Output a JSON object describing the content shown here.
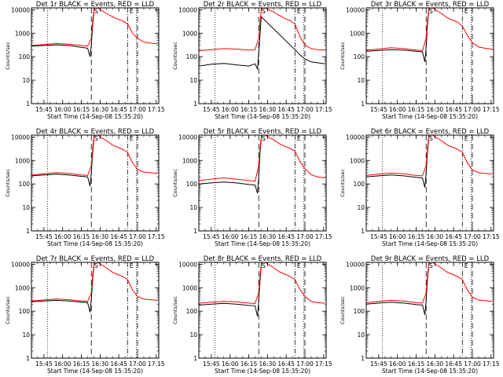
{
  "figure": {
    "xlabel": "Start Time (14-Sep-08 15:35:20)",
    "ylabel": "Counts/sec",
    "x_ticks": [
      "15:45",
      "16:00",
      "16:15",
      "16:30",
      "16:45",
      "17:00",
      "17:15"
    ],
    "y_ticks": [
      "1",
      "10",
      "100",
      "1000",
      "10000"
    ],
    "markers": {
      "start": "S",
      "end": "E"
    },
    "colors": {
      "events": "#000000",
      "lld": "#ff0000",
      "axes": "#000000"
    }
  },
  "chart_data": [
    {
      "type": "line",
      "title": "Det 1r BLACK = Events, RED = LLD",
      "xlim": [
        "15:35",
        "17:17"
      ],
      "ylim": [
        1,
        12000
      ],
      "yscale": "log",
      "vlines_dotted": [
        "15:48",
        "16:59"
      ],
      "vlines_dashed": [
        "16:23",
        "17:00"
      ],
      "vlines_dashdot": [
        "16:52"
      ],
      "series": [
        {
          "name": "Events",
          "x": [
            "15:35",
            "15:45",
            "15:55",
            "16:05",
            "16:15",
            "16:20",
            "16:22",
            "16:23",
            "16:24",
            "16:25"
          ],
          "y": [
            280,
            300,
            320,
            300,
            250,
            230,
            100,
            300,
            2000,
            8000
          ]
        },
        {
          "name": "LLD",
          "x": [
            "15:35",
            "15:45",
            "15:55",
            "16:05",
            "16:15",
            "16:20",
            "16:23",
            "16:24",
            "16:25",
            "16:26",
            "16:28",
            "16:35",
            "16:40",
            "16:45",
            "16:48",
            "16:52",
            "16:56",
            "17:00",
            "17:05",
            "17:10",
            "17:16"
          ],
          "y": [
            300,
            330,
            360,
            340,
            300,
            280,
            600,
            3000,
            10000,
            12000,
            12000,
            7000,
            5000,
            3800,
            3400,
            2500,
            1000,
            600,
            420,
            380,
            350
          ]
        }
      ]
    },
    {
      "type": "line",
      "title": "Det 2r BLACK = Events, RED = LLD",
      "xlim": [
        "15:35",
        "17:17"
      ],
      "ylim": [
        1,
        12000
      ],
      "yscale": "log",
      "vlines_dotted": [
        "15:48",
        "16:59"
      ],
      "vlines_dashed": [
        "16:23",
        "17:00"
      ],
      "vlines_dashdot": [
        "16:52"
      ],
      "series": [
        {
          "name": "Events",
          "x": [
            "15:35",
            "15:45",
            "15:55",
            "16:05",
            "16:15",
            "16:20",
            "16:22",
            "16:23",
            "16:24",
            "16:25",
            "16:52",
            "16:56",
            "17:00",
            "17:05",
            "17:10",
            "17:16"
          ],
          "y": [
            40,
            48,
            52,
            45,
            40,
            50,
            30,
            150,
            800,
            5000,
            200,
            120,
            80,
            60,
            55,
            50
          ]
        },
        {
          "name": "LLD",
          "x": [
            "15:35",
            "15:45",
            "15:55",
            "16:05",
            "16:15",
            "16:20",
            "16:23",
            "16:24",
            "16:25",
            "16:26",
            "16:28",
            "16:35",
            "16:40",
            "16:45",
            "16:48",
            "16:52",
            "16:56",
            "17:00",
            "17:05",
            "17:10",
            "17:16"
          ],
          "y": [
            180,
            200,
            220,
            210,
            190,
            200,
            600,
            3000,
            10000,
            12000,
            12000,
            8000,
            5500,
            4000,
            3500,
            2500,
            700,
            320,
            220,
            200,
            190
          ]
        }
      ]
    },
    {
      "type": "line",
      "title": "Det 3r BLACK = Events, RED = LLD",
      "xlim": [
        "15:35",
        "17:17"
      ],
      "ylim": [
        1,
        12000
      ],
      "yscale": "log",
      "vlines_dotted": [
        "15:48",
        "16:59"
      ],
      "vlines_dashed": [
        "16:23",
        "17:00"
      ],
      "vlines_dashdot": [
        "16:52"
      ],
      "series": [
        {
          "name": "Events",
          "x": [
            "15:35",
            "15:45",
            "15:55",
            "16:05",
            "16:15",
            "16:20",
            "16:22",
            "16:23",
            "16:24",
            "16:25"
          ],
          "y": [
            170,
            185,
            200,
            190,
            170,
            160,
            60,
            250,
            2000,
            8000
          ]
        },
        {
          "name": "LLD",
          "x": [
            "15:35",
            "15:45",
            "15:55",
            "16:05",
            "16:15",
            "16:20",
            "16:23",
            "16:24",
            "16:25",
            "16:26",
            "16:28",
            "16:35",
            "16:40",
            "16:45",
            "16:48",
            "16:52",
            "16:56",
            "17:00",
            "17:05",
            "17:10",
            "17:16"
          ],
          "y": [
            190,
            210,
            240,
            220,
            190,
            180,
            600,
            3000,
            10000,
            12000,
            12000,
            7000,
            4500,
            3500,
            3000,
            2000,
            800,
            400,
            260,
            230,
            210
          ]
        }
      ]
    },
    {
      "type": "line",
      "title": "Det 4r BLACK = Events, RED = LLD",
      "xlim": [
        "15:35",
        "17:17"
      ],
      "ylim": [
        1,
        12000
      ],
      "yscale": "log",
      "vlines_dotted": [
        "15:48",
        "16:59"
      ],
      "vlines_dashed": [
        "16:23",
        "17:00"
      ],
      "vlines_dashdot": [
        "16:52"
      ],
      "series": [
        {
          "name": "Events",
          "x": [
            "15:35",
            "15:45",
            "15:55",
            "16:05",
            "16:15",
            "16:20",
            "16:22",
            "16:23",
            "16:24",
            "16:25"
          ],
          "y": [
            220,
            240,
            260,
            240,
            210,
            200,
            80,
            300,
            2000,
            8000
          ]
        },
        {
          "name": "LLD",
          "x": [
            "15:35",
            "15:45",
            "15:55",
            "16:05",
            "16:15",
            "16:20",
            "16:23",
            "16:24",
            "16:25",
            "16:26",
            "16:28",
            "16:35",
            "16:40",
            "16:45",
            "16:48",
            "16:52",
            "16:56",
            "17:00",
            "17:05",
            "17:10",
            "17:16"
          ],
          "y": [
            240,
            270,
            300,
            280,
            240,
            230,
            600,
            3000,
            10000,
            12000,
            12000,
            7000,
            4500,
            3500,
            3000,
            2200,
            800,
            420,
            320,
            300,
            280
          ]
        }
      ]
    },
    {
      "type": "line",
      "title": "Det 5r BLACK = Events, RED = LLD",
      "xlim": [
        "15:35",
        "17:17"
      ],
      "ylim": [
        1,
        12000
      ],
      "yscale": "log",
      "vlines_dotted": [
        "15:48",
        "16:59"
      ],
      "vlines_dashed": [
        "16:23",
        "17:00"
      ],
      "vlines_dashdot": [
        "16:52"
      ],
      "series": [
        {
          "name": "Events",
          "x": [
            "15:35",
            "15:45",
            "15:55",
            "16:05",
            "16:15",
            "16:20",
            "16:22",
            "16:23",
            "16:24",
            "16:25"
          ],
          "y": [
            100,
            110,
            120,
            110,
            95,
            90,
            40,
            200,
            2000,
            8000
          ]
        },
        {
          "name": "LLD",
          "x": [
            "15:35",
            "15:45",
            "15:55",
            "16:05",
            "16:15",
            "16:20",
            "16:23",
            "16:24",
            "16:25",
            "16:26",
            "16:28",
            "16:35",
            "16:40",
            "16:45",
            "16:48",
            "16:52",
            "16:56",
            "17:00",
            "17:05",
            "17:10",
            "17:16"
          ],
          "y": [
            140,
            160,
            180,
            160,
            140,
            130,
            600,
            3000,
            10000,
            12000,
            12000,
            7500,
            5000,
            3800,
            3300,
            2500,
            900,
            450,
            250,
            200,
            180
          ]
        }
      ]
    },
    {
      "type": "line",
      "title": "Det 6r BLACK = Events, RED = LLD",
      "xlim": [
        "15:35",
        "17:17"
      ],
      "ylim": [
        1,
        12000
      ],
      "yscale": "log",
      "vlines_dotted": [
        "15:48",
        "16:59"
      ],
      "vlines_dashed": [
        "16:23",
        "17:00"
      ],
      "vlines_dashdot": [
        "16:52"
      ],
      "series": [
        {
          "name": "Events",
          "x": [
            "15:35",
            "15:45",
            "15:55",
            "16:05",
            "16:15",
            "16:20",
            "16:22",
            "16:23",
            "16:24",
            "16:25"
          ],
          "y": [
            200,
            220,
            240,
            220,
            190,
            180,
            70,
            280,
            2000,
            8000
          ]
        },
        {
          "name": "LLD",
          "x": [
            "15:35",
            "15:45",
            "15:55",
            "16:05",
            "16:15",
            "16:20",
            "16:23",
            "16:24",
            "16:25",
            "16:26",
            "16:28",
            "16:35",
            "16:40",
            "16:45",
            "16:48",
            "16:52",
            "16:56",
            "17:00",
            "17:05",
            "17:10",
            "17:16"
          ],
          "y": [
            230,
            260,
            290,
            270,
            230,
            220,
            600,
            3000,
            10000,
            12000,
            12000,
            7000,
            4500,
            3500,
            3000,
            2200,
            800,
            400,
            300,
            280,
            260
          ]
        }
      ]
    },
    {
      "type": "line",
      "title": "Det 7r BLACK = Events, RED = LLD",
      "xlim": [
        "15:35",
        "17:17"
      ],
      "ylim": [
        1,
        12000
      ],
      "yscale": "log",
      "vlines_dotted": [
        "15:48",
        "16:59"
      ],
      "vlines_dashed": [
        "16:23",
        "17:00"
      ],
      "vlines_dashdot": [
        "16:52"
      ],
      "series": [
        {
          "name": "Events",
          "x": [
            "15:35",
            "15:45",
            "15:55",
            "16:05",
            "16:15",
            "16:20",
            "16:22",
            "16:23",
            "16:24",
            "16:25"
          ],
          "y": [
            250,
            270,
            290,
            270,
            240,
            230,
            90,
            300,
            2000,
            8000
          ]
        },
        {
          "name": "LLD",
          "x": [
            "15:35",
            "15:45",
            "15:55",
            "16:05",
            "16:15",
            "16:20",
            "16:23",
            "16:24",
            "16:25",
            "16:26",
            "16:28",
            "16:35",
            "16:40",
            "16:45",
            "16:48",
            "16:52",
            "16:56",
            "17:00",
            "17:05",
            "17:10",
            "17:16"
          ],
          "y": [
            270,
            300,
            330,
            310,
            270,
            260,
            600,
            3000,
            10000,
            12000,
            12000,
            7000,
            4500,
            3500,
            3000,
            2200,
            800,
            420,
            330,
            310,
            290
          ]
        }
      ]
    },
    {
      "type": "line",
      "title": "Det 8r BLACK = Events, RED = LLD",
      "xlim": [
        "15:35",
        "17:17"
      ],
      "ylim": [
        1,
        12000
      ],
      "yscale": "log",
      "vlines_dotted": [
        "15:48",
        "16:59"
      ],
      "vlines_dashed": [
        "16:23",
        "17:00"
      ],
      "vlines_dashdot": [
        "16:52"
      ],
      "series": [
        {
          "name": "Events",
          "x": [
            "15:35",
            "15:45",
            "15:55",
            "16:05",
            "16:15",
            "16:20",
            "16:22",
            "16:23",
            "16:24",
            "16:25"
          ],
          "y": [
            180,
            200,
            215,
            200,
            175,
            170,
            60,
            260,
            2000,
            8000
          ]
        },
        {
          "name": "LLD",
          "x": [
            "15:35",
            "15:45",
            "15:55",
            "16:05",
            "16:15",
            "16:20",
            "16:23",
            "16:24",
            "16:25",
            "16:26",
            "16:28",
            "16:35",
            "16:40",
            "16:45",
            "16:48",
            "16:52",
            "16:56",
            "17:00",
            "17:05",
            "17:10",
            "17:16"
          ],
          "y": [
            220,
            240,
            260,
            250,
            220,
            210,
            600,
            3000,
            10000,
            12000,
            12000,
            7000,
            4600,
            3600,
            3000,
            2200,
            850,
            430,
            260,
            230,
            220
          ]
        }
      ]
    },
    {
      "type": "line",
      "title": "Det 9r BLACK = Events, RED = LLD",
      "xlim": [
        "15:35",
        "17:17"
      ],
      "ylim": [
        1,
        12000
      ],
      "yscale": "log",
      "vlines_dotted": [
        "15:48",
        "16:59"
      ],
      "vlines_dashed": [
        "16:23",
        "17:00"
      ],
      "vlines_dashdot": [
        "16:52"
      ],
      "series": [
        {
          "name": "Events",
          "x": [
            "15:35",
            "15:45",
            "15:55",
            "16:05",
            "16:15",
            "16:20",
            "16:22",
            "16:23",
            "16:24",
            "16:25"
          ],
          "y": [
            200,
            220,
            240,
            220,
            190,
            180,
            70,
            280,
            2000,
            8000
          ]
        },
        {
          "name": "LLD",
          "x": [
            "15:35",
            "15:45",
            "15:55",
            "16:05",
            "16:15",
            "16:20",
            "16:23",
            "16:24",
            "16:25",
            "16:26",
            "16:28",
            "16:35",
            "16:40",
            "16:45",
            "16:48",
            "16:52",
            "16:56",
            "17:00",
            "17:05",
            "17:10",
            "17:16"
          ],
          "y": [
            230,
            260,
            290,
            270,
            230,
            220,
            600,
            3000,
            10000,
            12000,
            12000,
            7000,
            4500,
            3500,
            3000,
            2200,
            800,
            400,
            300,
            280,
            260
          ]
        }
      ]
    }
  ]
}
